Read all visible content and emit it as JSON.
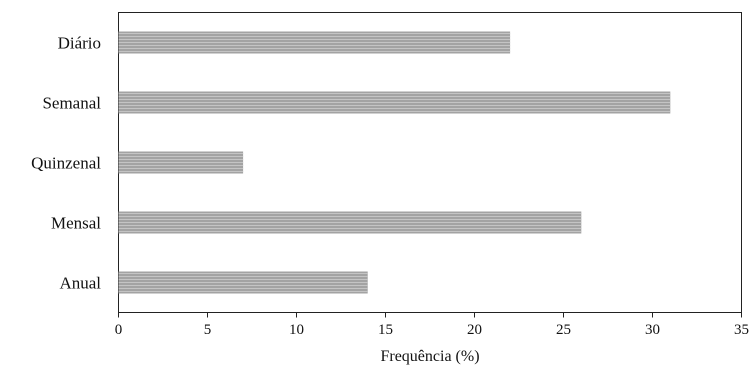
{
  "chart_data": {
    "type": "bar",
    "orientation": "horizontal",
    "categories": [
      "Diário",
      "Semanal",
      "Quinzenal",
      "Mensal",
      "Anual"
    ],
    "values": [
      22,
      31,
      7,
      26,
      14
    ],
    "xlabel": "Frequência (%)",
    "ylabel": "",
    "xlim": [
      0,
      35
    ],
    "xticks": [
      "0",
      "5",
      "10",
      "15",
      "20",
      "25",
      "30",
      "35"
    ],
    "grid": false,
    "legend": "none",
    "bar_color": "#a3a3a3"
  }
}
